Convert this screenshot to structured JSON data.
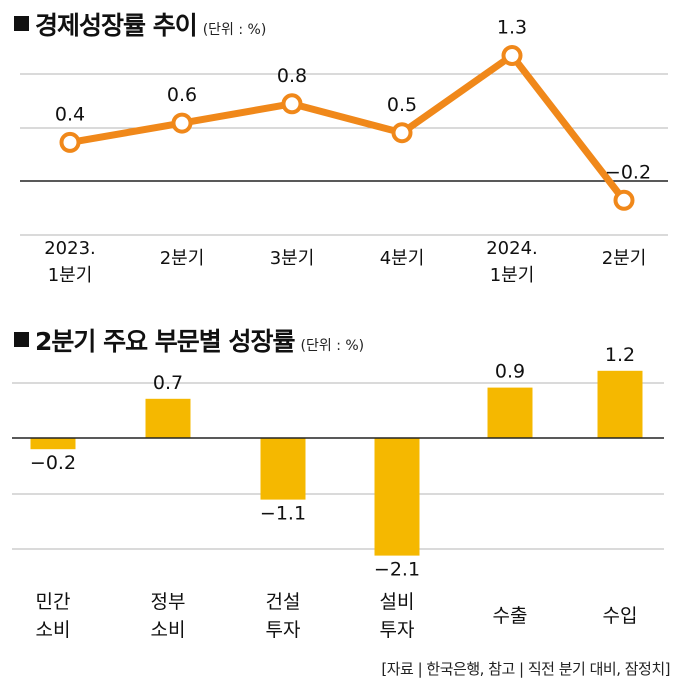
{
  "chart_data": [
    {
      "type": "line",
      "title": "경제성장률 추이",
      "unit": "(단위 : %)",
      "categories": [
        "2023.\n1분기",
        "2분기",
        "3분기",
        "4분기",
        "2024.\n1분기",
        "2분기"
      ],
      "values": [
        0.4,
        0.6,
        0.8,
        0.5,
        1.3,
        -0.2
      ],
      "value_labels": [
        "0.4",
        "0.6",
        "0.8",
        "0.5",
        "1.3",
        "−0.2"
      ],
      "color": "#f0881a"
    },
    {
      "type": "bar",
      "title": "2분기 주요 부문별 성장률",
      "unit": "(단위 : %)",
      "categories": [
        "민간\n소비",
        "정부\n소비",
        "건설\n투자",
        "설비\n투자",
        "수출",
        "수입"
      ],
      "values": [
        -0.2,
        0.7,
        -1.1,
        -2.1,
        0.9,
        1.2
      ],
      "value_labels": [
        "−0.2",
        "0.7",
        "−1.1",
        "−2.1",
        "0.9",
        "1.2"
      ],
      "color": "#f5b800"
    }
  ],
  "source": "[자료 | 한국은행, 참고 | 직전 분기 대비, 잠정치]"
}
